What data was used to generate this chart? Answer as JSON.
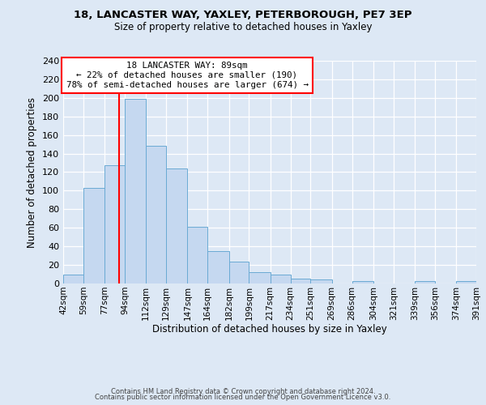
{
  "title1": "18, LANCASTER WAY, YAXLEY, PETERBOROUGH, PE7 3EP",
  "title2": "Size of property relative to detached houses in Yaxley",
  "xlabel": "Distribution of detached houses by size in Yaxley",
  "ylabel": "Number of detached properties",
  "bin_edges": [
    42,
    59,
    77,
    94,
    112,
    129,
    147,
    164,
    182,
    199,
    217,
    234,
    251,
    269,
    286,
    304,
    321,
    339,
    356,
    374,
    391
  ],
  "counts": [
    10,
    103,
    127,
    199,
    148,
    124,
    61,
    35,
    24,
    12,
    10,
    5,
    4,
    0,
    3,
    0,
    0,
    3,
    0,
    3
  ],
  "bar_color": "#c5d8f0",
  "bar_edge_color": "#6aaad4",
  "vline_x": 89,
  "vline_color": "red",
  "annotation_lines": [
    "18 LANCASTER WAY: 89sqm",
    "← 22% of detached houses are smaller (190)",
    "78% of semi-detached houses are larger (674) →"
  ],
  "annotation_box_color": "white",
  "annotation_box_edge": "red",
  "ylim": [
    0,
    240
  ],
  "yticks": [
    0,
    20,
    40,
    60,
    80,
    100,
    120,
    140,
    160,
    180,
    200,
    220,
    240
  ],
  "tick_labels": [
    "42sqm",
    "59sqm",
    "77sqm",
    "94sqm",
    "112sqm",
    "129sqm",
    "147sqm",
    "164sqm",
    "182sqm",
    "199sqm",
    "217sqm",
    "234sqm",
    "251sqm",
    "269sqm",
    "286sqm",
    "304sqm",
    "321sqm",
    "339sqm",
    "356sqm",
    "374sqm",
    "391sqm"
  ],
  "footer1": "Contains HM Land Registry data © Crown copyright and database right 2024.",
  "footer2": "Contains public sector information licensed under the Open Government Licence v3.0.",
  "background_color": "#dde8f5",
  "plot_bg_color": "#dde8f5"
}
